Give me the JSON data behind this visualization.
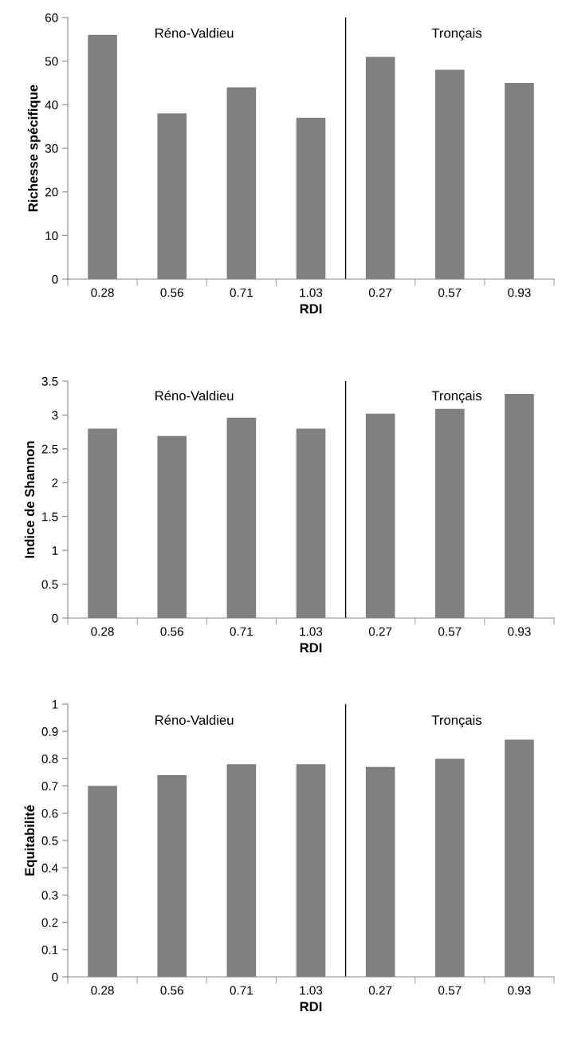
{
  "chart_data": [
    {
      "type": "bar",
      "categories": [
        "0.28",
        "0.56",
        "0.71",
        "1.03",
        "0.27",
        "0.57",
        "0.93"
      ],
      "values": [
        56,
        38,
        44,
        37,
        51,
        48,
        45
      ],
      "color": "#808080",
      "xlabel": "RDI",
      "ylabel": "Richesse spécifique",
      "ylim": [
        0,
        60
      ],
      "yticks": [
        0,
        10,
        20,
        30,
        40,
        50,
        60
      ],
      "grid": false,
      "legend": false,
      "annotations": [
        "Réno-Valdieu",
        "Tronçais"
      ]
    },
    {
      "type": "bar",
      "categories": [
        "0.28",
        "0.56",
        "0.71",
        "1.03",
        "0.27",
        "0.57",
        "0.93"
      ],
      "values": [
        2.8,
        2.69,
        2.96,
        2.8,
        3.02,
        3.09,
        3.31
      ],
      "color": "#808080",
      "xlabel": "RDI",
      "ylabel": "Indice de Shannon",
      "ylim": [
        0,
        3.5
      ],
      "yticks": [
        0,
        0.5,
        1,
        1.5,
        2,
        2.5,
        3,
        3.5
      ],
      "grid": false,
      "legend": false,
      "annotations": [
        "Réno-Valdieu",
        "Tronçais"
      ]
    },
    {
      "type": "bar",
      "categories": [
        "0.28",
        "0.56",
        "0.71",
        "1.03",
        "0.27",
        "0.57",
        "0.93"
      ],
      "values": [
        0.7,
        0.74,
        0.78,
        0.78,
        0.77,
        0.8,
        0.87
      ],
      "color": "#808080",
      "xlabel": "RDI",
      "ylabel": "Equitabilité",
      "ylim": [
        0,
        1
      ],
      "yticks": [
        0,
        0.1,
        0.2,
        0.3,
        0.4,
        0.5,
        0.6,
        0.7,
        0.8,
        0.9,
        1
      ],
      "grid": false,
      "legend": false,
      "annotations": [
        "Réno-Valdieu",
        "Tronçais"
      ]
    }
  ]
}
